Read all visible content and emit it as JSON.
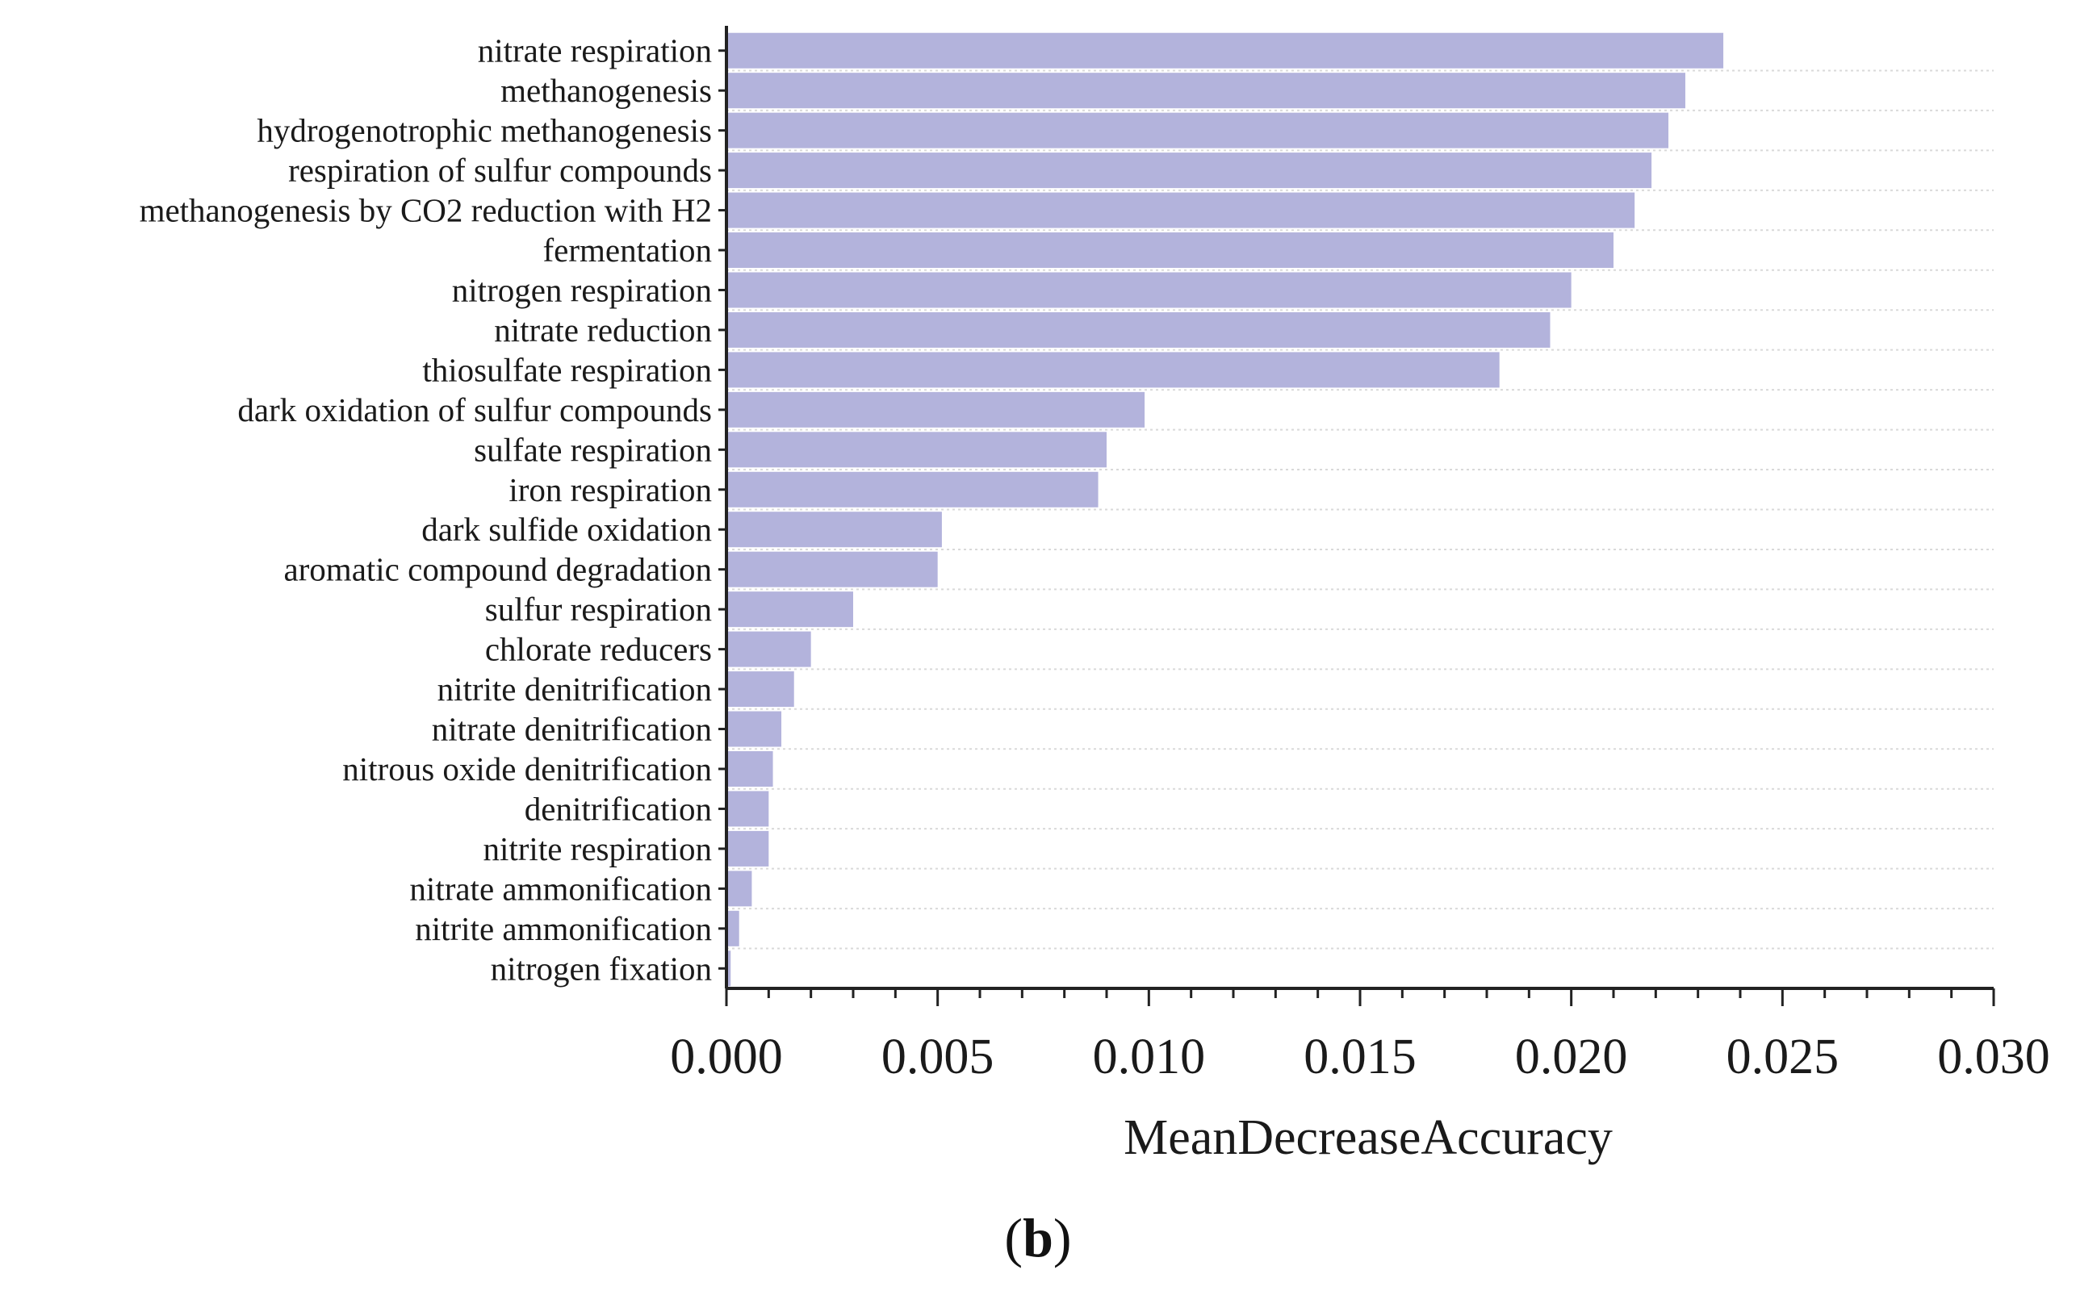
{
  "chart_data": {
    "type": "bar",
    "orientation": "horizontal",
    "title": "",
    "xlabel": "MeanDecreaseAccuracy",
    "ylabel": "",
    "xlim": [
      0.0,
      0.03
    ],
    "xticks": [
      "0.000",
      "0.005",
      "0.010",
      "0.015",
      "0.020",
      "0.025",
      "0.030"
    ],
    "grid": true,
    "bar_color": "#b3b3dc",
    "categories": [
      "nitrate respiration",
      "methanogenesis",
      "hydrogenotrophic methanogenesis",
      "respiration of sulfur compounds",
      "methanogenesis by CO2 reduction with H2",
      "fermentation",
      "nitrogen respiration",
      "nitrate reduction",
      "thiosulfate respiration",
      "dark oxidation of sulfur compounds",
      "sulfate respiration",
      "iron respiration",
      "dark sulfide oxidation",
      "aromatic compound degradation",
      "sulfur respiration",
      "chlorate reducers",
      "nitrite denitrification",
      "nitrate denitrification",
      "nitrous oxide denitrification",
      "denitrification",
      "nitrite respiration",
      "nitrate ammonification",
      "nitrite ammonification",
      "nitrogen fixation"
    ],
    "values": [
      0.0236,
      0.0227,
      0.0223,
      0.0219,
      0.0215,
      0.021,
      0.02,
      0.0195,
      0.0183,
      0.0099,
      0.009,
      0.0088,
      0.0051,
      0.005,
      0.003,
      0.002,
      0.0016,
      0.0013,
      0.0011,
      0.001,
      0.001,
      0.0006,
      0.0003,
      0.0001
    ]
  },
  "figure": {
    "panel_label": "b"
  }
}
